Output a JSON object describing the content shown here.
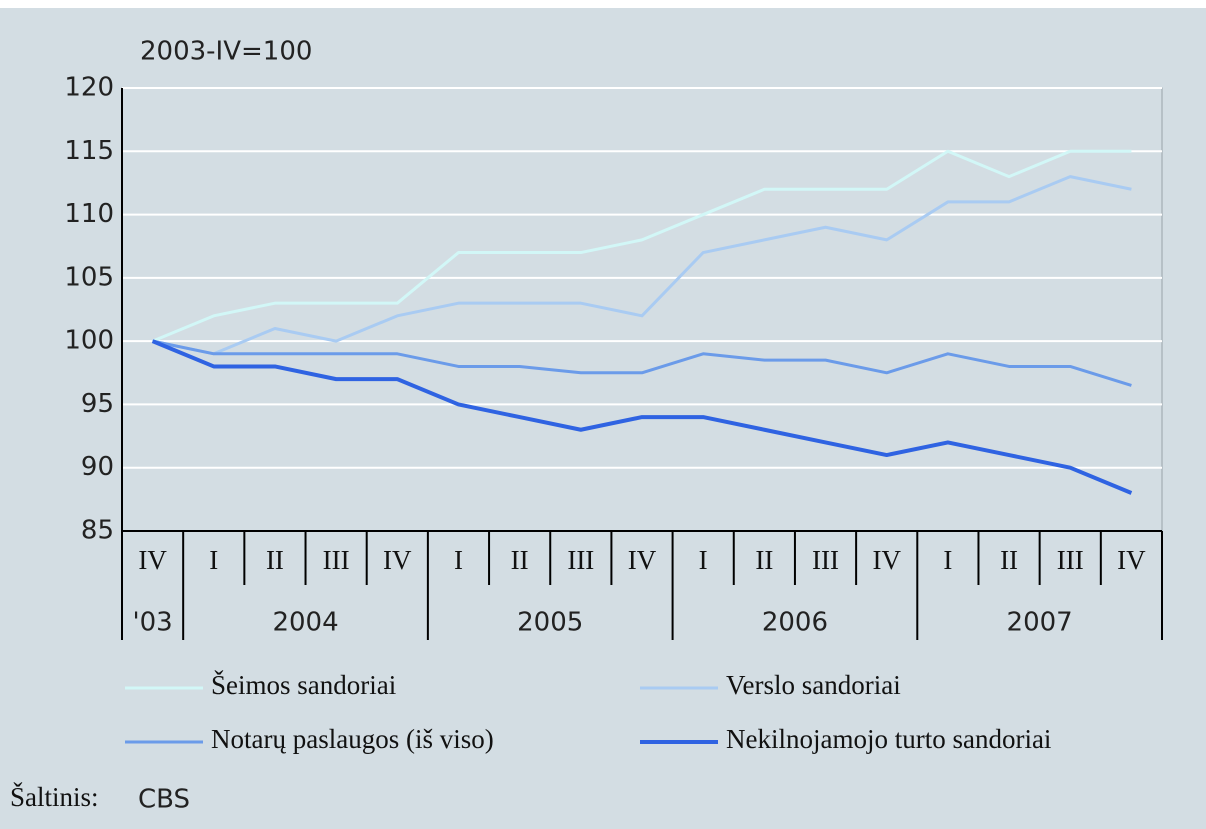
{
  "chart_data": {
    "type": "line",
    "unit_label": "2003-IV=100",
    "categories": [
      "IV",
      "I",
      "II",
      "III",
      "IV",
      "I",
      "II",
      "III",
      "IV",
      "I",
      "II",
      "III",
      "IV",
      "I",
      "II",
      "III",
      "IV"
    ],
    "year_labels": [
      "'03",
      "2004",
      null,
      null,
      null,
      "2005",
      null,
      null,
      null,
      "2006",
      null,
      null,
      null,
      "2007",
      null,
      null,
      null
    ],
    "series": [
      {
        "name": "Šeimos sandoriai",
        "color": "#d2f7f7",
        "values": [
          100,
          102,
          103,
          103,
          103,
          107,
          107,
          107,
          108,
          110,
          112,
          112,
          112,
          115,
          113,
          115,
          115
        ]
      },
      {
        "name": "Verslo sandoriai",
        "color": "#a9cbf2",
        "values": [
          100,
          99,
          101,
          100,
          102,
          103,
          103,
          103,
          102,
          107,
          108,
          109,
          108,
          111,
          111,
          113,
          112
        ]
      },
      {
        "name": "Notarų paslaugos (iš viso)",
        "color": "#6b9be9",
        "values": [
          100,
          99,
          99,
          99,
          99,
          98,
          98,
          97.5,
          97.5,
          99,
          98.5,
          98.5,
          97.5,
          99,
          98,
          98,
          96.5
        ]
      },
      {
        "name": "Nekilnojamojo turto sandoriai",
        "color": "#2f63e2",
        "values": [
          100,
          98,
          98,
          97,
          97,
          95,
          94,
          93,
          94,
          94,
          93,
          92,
          91,
          92,
          91,
          90,
          88
        ]
      }
    ],
    "ylim": [
      85,
      120
    ],
    "yticks": [
      85,
      90,
      95,
      100,
      105,
      110,
      115,
      120
    ],
    "grid": true,
    "legend": "bottom",
    "source_label": "Šaltinis:",
    "source": "CBS"
  }
}
